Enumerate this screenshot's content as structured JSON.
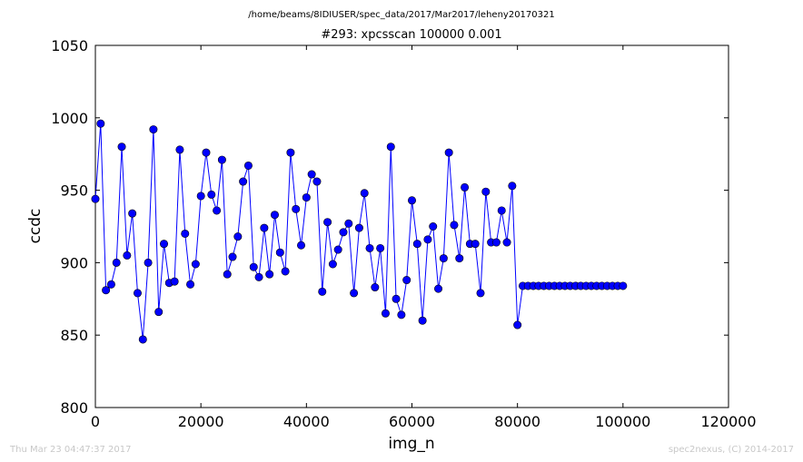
{
  "header": {
    "file_path": "/home/beams/8IDIUSER/spec_data/2017/Mar2017/leheny20170321"
  },
  "footer": {
    "left_text": "Thu Mar 23 04:47:37 2017",
    "right_text": "spec2nexus, (C) 2014-2017"
  },
  "colors": {
    "series": "#0000ff",
    "axes": "#000000",
    "footer": "#c8c8c8",
    "background": "#ffffff"
  },
  "chart_data": {
    "type": "line",
    "title": "#293: xpcsscan 100000 0.001",
    "xlabel": "img_n",
    "ylabel": "ccdc",
    "xlim": [
      0,
      120000
    ],
    "ylim": [
      800,
      1050
    ],
    "xticks": [
      0,
      20000,
      40000,
      60000,
      80000,
      100000,
      120000
    ],
    "yticks": [
      800,
      850,
      900,
      950,
      1000,
      1050
    ],
    "grid": false,
    "marker": "circle",
    "series": [
      {
        "x": [
          0,
          1000,
          2000,
          3000,
          4000,
          5000,
          6000,
          7000,
          8000,
          9000,
          10000,
          11000,
          12000,
          13000,
          14000,
          15000,
          16000,
          17000,
          18000,
          19000,
          20000,
          21000,
          22000,
          23000,
          24000,
          25000,
          26000,
          27000,
          28000,
          29000,
          30000,
          31000,
          32000,
          33000,
          34000,
          35000,
          36000,
          37000,
          38000,
          39000,
          40000,
          41000,
          42000,
          43000,
          44000,
          45000,
          46000,
          47000,
          48000,
          49000,
          50000,
          51000,
          52000,
          53000,
          54000,
          55000,
          56000,
          57000,
          58000,
          59000,
          60000,
          61000,
          62000,
          63000,
          64000,
          65000,
          66000,
          67000,
          68000,
          69000,
          70000,
          71000,
          72000,
          73000,
          74000,
          75000,
          76000,
          77000,
          78000,
          79000,
          80000,
          81000,
          82000,
          83000,
          84000,
          85000,
          86000,
          87000,
          88000,
          89000,
          90000,
          91000,
          92000,
          93000,
          94000,
          95000,
          96000,
          97000,
          98000,
          99000,
          100000
        ],
        "y": [
          944,
          996,
          881,
          885,
          900,
          980,
          905,
          934,
          879,
          847,
          900,
          992,
          866,
          913,
          886,
          887,
          978,
          920,
          885,
          899,
          946,
          976,
          947,
          936,
          971,
          892,
          904,
          918,
          956,
          967,
          897,
          890,
          924,
          892,
          933,
          907,
          894,
          976,
          937,
          912,
          945,
          961,
          956,
          880,
          928,
          899,
          909,
          921,
          927,
          879,
          924,
          948,
          910,
          883,
          910,
          865,
          980,
          875,
          864,
          888,
          943,
          913,
          860,
          916,
          925,
          882,
          903,
          976,
          926,
          903,
          952,
          913,
          913,
          879,
          949,
          914,
          914,
          936,
          914,
          953,
          857,
          884,
          884,
          884,
          884,
          884,
          884,
          884,
          884,
          884,
          884,
          884,
          884,
          884,
          884,
          884,
          884,
          884,
          884,
          884,
          884
        ]
      }
    ]
  }
}
